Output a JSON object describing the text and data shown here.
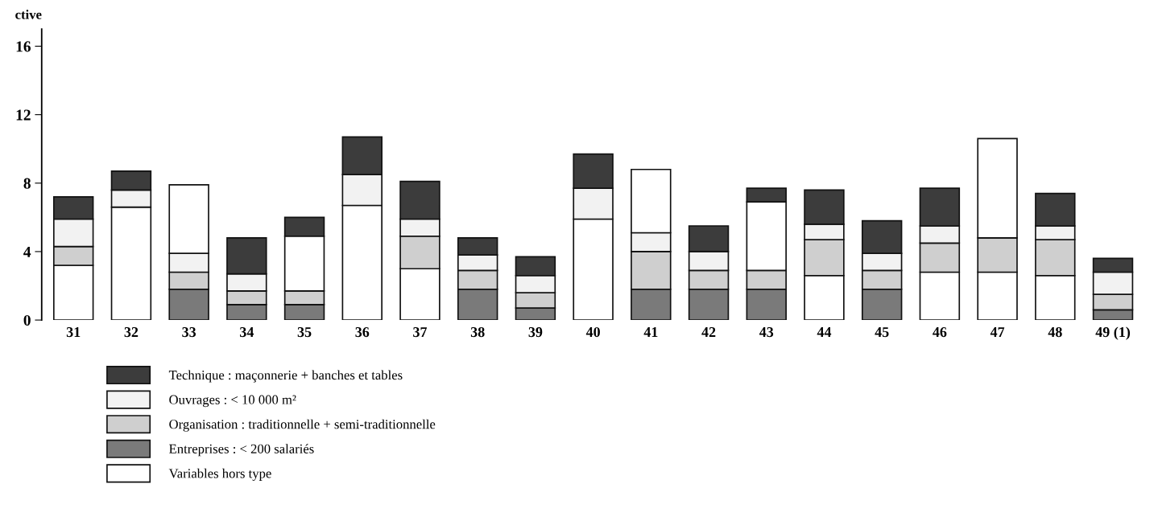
{
  "chart_data": {
    "type": "bar",
    "stacked": true,
    "ylabel": "ctive",
    "categories": [
      "31",
      "32",
      "33",
      "34",
      "35",
      "36",
      "37",
      "38",
      "39",
      "40",
      "41",
      "42",
      "43",
      "44",
      "45",
      "46",
      "47",
      "48",
      "49 (1)"
    ],
    "series": [
      {
        "name": "Variables hors type",
        "color": "#ffffff",
        "values": [
          3.2,
          6.6,
          null,
          null,
          null,
          6.7,
          3.0,
          null,
          null,
          5.9,
          null,
          null,
          null,
          2.6,
          null,
          2.8,
          2.8,
          2.6,
          null
        ]
      },
      {
        "name": "Entreprises : < 200 salariés",
        "color": "#7a7a7a",
        "values": [
          null,
          null,
          1.8,
          0.9,
          0.9,
          null,
          null,
          1.8,
          0.7,
          null,
          1.8,
          1.8,
          1.8,
          null,
          1.8,
          null,
          null,
          null,
          0.6
        ]
      },
      {
        "name": "Organisation : traditionnelle + semi-traditionnelle",
        "color": "#cfcfcf",
        "values": [
          1.1,
          null,
          1.0,
          0.8,
          0.8,
          null,
          1.9,
          1.1,
          0.9,
          null,
          2.2,
          1.1,
          1.1,
          2.1,
          1.1,
          1.7,
          2.0,
          2.1,
          0.9
        ]
      },
      {
        "color": "#ffffff",
        "values": [
          null,
          null,
          null,
          null,
          3.2,
          null,
          null,
          null,
          null,
          null,
          null,
          null,
          4.0,
          null,
          null,
          null,
          null,
          null,
          null
        ]
      },
      {
        "name": "Ouvrages : < 10 000 m²",
        "color": "#f2f2f2",
        "values": [
          1.6,
          1.0,
          1.1,
          1.0,
          null,
          1.8,
          1.0,
          0.9,
          1.0,
          1.8,
          1.1,
          1.1,
          null,
          0.9,
          1.0,
          1.0,
          null,
          0.8,
          1.3
        ]
      },
      {
        "color": "#ffffff",
        "values": [
          null,
          null,
          4.0,
          null,
          null,
          null,
          null,
          null,
          null,
          null,
          3.7,
          null,
          null,
          null,
          null,
          null,
          5.8,
          null,
          null
        ]
      },
      {
        "name": "Technique : maçonnerie + banches et tables",
        "color": "#3c3c3c",
        "values": [
          1.3,
          1.1,
          null,
          2.1,
          1.1,
          2.2,
          2.2,
          1.0,
          1.1,
          2.0,
          null,
          1.5,
          0.8,
          2.0,
          1.9,
          2.2,
          null,
          1.9,
          0.8
        ]
      }
    ],
    "ylim": [
      0,
      17
    ],
    "yticks": [
      0,
      4,
      8,
      12,
      16
    ],
    "legend": "bottom left",
    "grid": false
  }
}
